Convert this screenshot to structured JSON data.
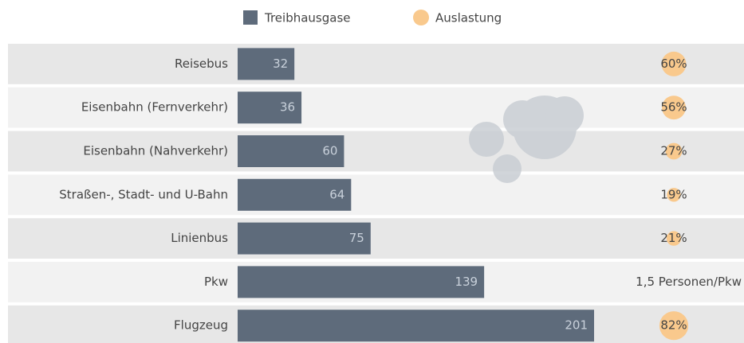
{
  "chart_data": {
    "type": "bar",
    "orientation": "horizontal",
    "categories": [
      "Reisebus",
      "Eisenbahn (Fernverkehr)",
      "Eisenbahn (Nahverkehr)",
      "Straßen-, Stadt- und U-Bahn",
      "Linienbus",
      "Pkw",
      "Flugzeug"
    ],
    "series": [
      {
        "name": "Treibhausgase",
        "color": "#5e6b7b",
        "values": [
          32,
          36,
          60,
          64,
          75,
          139,
          201
        ]
      },
      {
        "name": "Auslastung",
        "color": "#f9c98d",
        "values": [
          60,
          56,
          27,
          19,
          21,
          null,
          82
        ],
        "value_labels": [
          "60%",
          "56%",
          "27%",
          "19%",
          "21%",
          "1,5 Personen/Pkw",
          "82%"
        ]
      }
    ]
  }
}
